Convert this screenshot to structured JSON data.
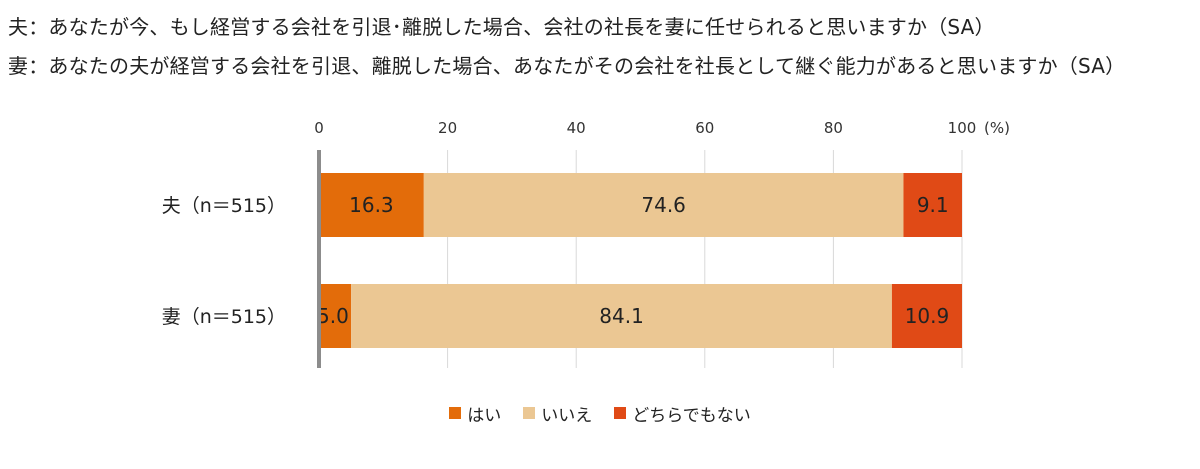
{
  "header": {
    "question_husband": "夫：あなたが今、もし経営する会社を引退･離脱した場合、会社の社長を妻に任せられると思いますか（SA）",
    "question_wife": "妻：あなたの夫が経営する会社を引退、離脱した場合、あなたがその会社を社長として継ぐ能力があると思いますか（SA）"
  },
  "chart_data": {
    "type": "bar",
    "orientation": "horizontal",
    "stacked": true,
    "categories": [
      "夫（n＝515）",
      "妻（n＝515）"
    ],
    "series": [
      {
        "name": "はい",
        "values": [
          16.3,
          5.0
        ],
        "color": "#E36C0A"
      },
      {
        "name": "いいえ",
        "values": [
          74.6,
          84.1
        ],
        "color": "#EBC793"
      },
      {
        "name": "どちらでもない",
        "values": [
          9.1,
          10.9
        ],
        "color": "#E04A16"
      }
    ],
    "value_labels": [
      [
        "16.3",
        "5.0"
      ],
      [
        "74.6",
        "84.1"
      ],
      [
        "9.1",
        "10.9"
      ]
    ],
    "xlim": [
      0,
      100
    ],
    "xticks": [
      "0",
      "20",
      "40",
      "60",
      "80",
      "100"
    ],
    "xticks_values": [
      0,
      20,
      40,
      60,
      80,
      100
    ],
    "unit_label": "(%)",
    "axis_position": "top",
    "grid": true,
    "legend_position": "bottom"
  }
}
